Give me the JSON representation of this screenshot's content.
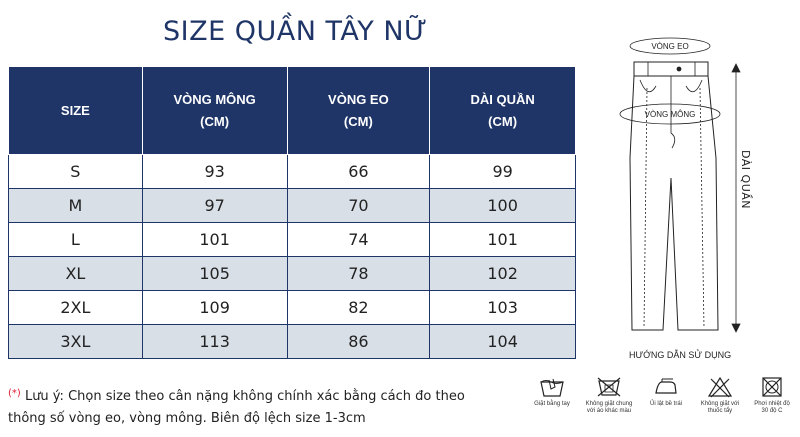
{
  "title": "SIZE QUẦN TÂY NỮ",
  "table": {
    "headers": [
      [
        "SIZE",
        ""
      ],
      [
        "VÒNG MÔNG",
        "(CM)"
      ],
      [
        "VÒNG EO",
        "(CM)"
      ],
      [
        "DÀI QUẦN",
        "(CM)"
      ]
    ],
    "rows": [
      [
        "S",
        "93",
        "66",
        "99"
      ],
      [
        "M",
        "97",
        "70",
        "100"
      ],
      [
        "L",
        "101",
        "74",
        "101"
      ],
      [
        "XL",
        "105",
        "78",
        "102"
      ],
      [
        "2XL",
        "109",
        "82",
        "103"
      ],
      [
        "3XL",
        "113",
        "86",
        "104"
      ]
    ]
  },
  "note": {
    "marker": "(*)",
    "line1": "Lưu ý: Chọn size theo cân nặng không chính xác bằng cách đo theo",
    "line2": "thông số vòng eo, vòng mông. Biên độ lệch size 1-3cm"
  },
  "diagram": {
    "waist_label": "VÒNG EO",
    "hip_label": "VÒNG MÔNG",
    "length_label": "DÀI QUẦN",
    "caption": "HƯỚNG DẪN SỬ DỤNG"
  },
  "care": [
    {
      "icon": "hand-wash-icon",
      "label1": "Giặt bằng tay",
      "label2": ""
    },
    {
      "icon": "no-mixed-wash-icon",
      "label1": "Không giặt chung",
      "label2": "với áo khác màu"
    },
    {
      "icon": "iron-icon",
      "label1": "Ủi lật bề trái",
      "label2": ""
    },
    {
      "icon": "no-bleach-icon",
      "label1": "Không giặt với",
      "label2": "thuốc tẩy"
    },
    {
      "icon": "dry-icon",
      "label1": "Phơi nhiệt độ",
      "label2": "30 độ C"
    }
  ]
}
